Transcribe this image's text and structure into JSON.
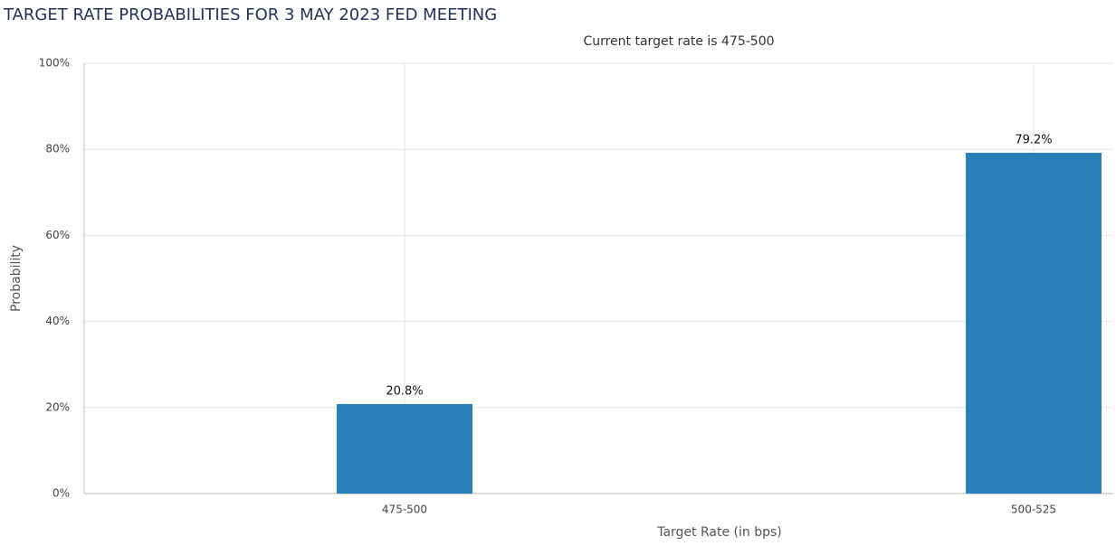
{
  "chart_data": {
    "type": "bar",
    "title": "TARGET RATE PROBABILITIES FOR 3 MAY 2023 FED MEETING",
    "subtitle": "Current target rate is 475-500",
    "x_label": "Target Rate (in bps)",
    "y_label": "Probability",
    "categories": [
      "475-500",
      "500-525"
    ],
    "values": [
      20.8,
      79.2
    ],
    "value_labels": [
      "20.8%",
      "79.2%"
    ],
    "color": "#2980b9",
    "ylim": [
      0,
      100
    ],
    "yticks": [
      {
        "value": 0,
        "label": "0%"
      },
      {
        "value": 20,
        "label": "20%"
      },
      {
        "value": 40,
        "label": "40%"
      },
      {
        "value": 60,
        "label": "60%"
      },
      {
        "value": 80,
        "label": "80%"
      },
      {
        "value": 100,
        "label": "100%"
      }
    ],
    "grid": true
  }
}
